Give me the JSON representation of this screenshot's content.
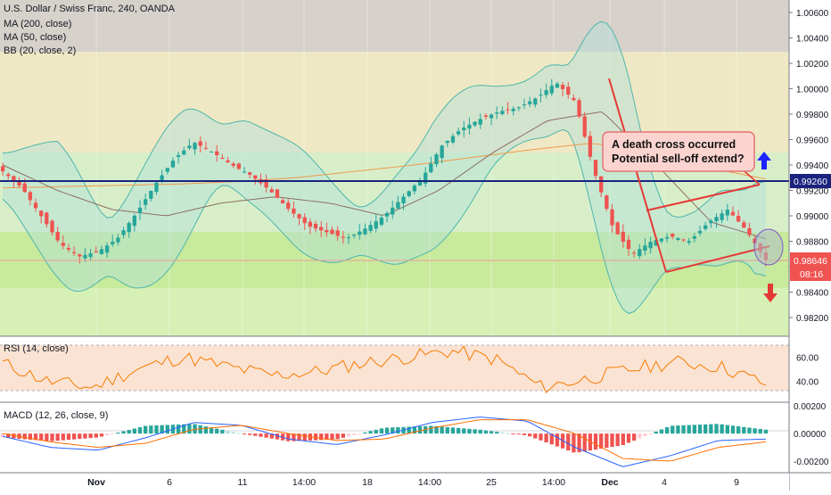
{
  "header": {
    "symbol": "U.S. Dollar / Swiss Franc, 240, OANDA",
    "indicators": [
      "MA (200, close)",
      "MA (50, close)",
      "BB (20, close, 2)"
    ]
  },
  "annotation": {
    "line1": "A death cross occurred",
    "line2": "Potential sell-off extend?"
  },
  "price_labels": {
    "resistance": "0.99260",
    "current": "0.98646",
    "countdown": "08:16"
  },
  "rsi_panel": {
    "label": "RSI (14, close)"
  },
  "macd_panel": {
    "label": "MACD (12, 26, close, 9)"
  },
  "colors": {
    "up": "#26a69a",
    "down": "#ef5350",
    "ma200": "#f2994a",
    "ma50": "#8d6e63",
    "bb_fill": "#b2dfdb",
    "resistance": "#1a237e",
    "trend": "#e53935",
    "rsi": "#f57c00",
    "macd": "#2962ff",
    "signal": "#ff6d00"
  },
  "chart_data": [
    {
      "type": "line",
      "title": "U.S. Dollar / Swiss Franc, 240, OANDA",
      "x_ticks": [
        "Nov",
        "6",
        "11",
        "14:00",
        "18",
        "14:00",
        "25",
        "14:00",
        "Dec",
        "4",
        "9"
      ],
      "y_ticks": [
        "0.98200",
        "0.98400",
        "0.98600",
        "0.98800",
        "0.99000",
        "0.99200",
        "0.99400",
        "0.99600",
        "0.99800",
        "1.00000",
        "1.00200",
        "1.00400",
        "1.00600"
      ],
      "ylim": [
        0.9808,
        1.0068
      ],
      "approx_close_path": [
        0.9935,
        0.9922,
        0.99,
        0.9878,
        0.9868,
        0.9872,
        0.9882,
        0.9902,
        0.9925,
        0.9945,
        0.9958,
        0.995,
        0.994,
        0.9932,
        0.992,
        0.9905,
        0.9892,
        0.9887,
        0.9882,
        0.989,
        0.99,
        0.9915,
        0.993,
        0.9955,
        0.9968,
        0.9976,
        0.9982,
        0.9985,
        0.9993,
        1.0005,
        0.999,
        0.9935,
        0.989,
        0.987,
        0.988,
        0.9884,
        0.988,
        0.9895,
        0.9905,
        0.9888,
        0.9865
      ],
      "resistance": 0.9926,
      "last_price": 0.98646,
      "series": [
        {
          "name": "MA (200, close)",
          "values": [
            0.9922,
            0.9923,
            0.9924,
            0.9925,
            0.9927,
            0.993,
            0.9935,
            0.994,
            0.9946,
            0.9952,
            0.9957,
            0.9953,
            0.9938,
            0.9929
          ]
        },
        {
          "name": "MA (50, close)",
          "values": [
            0.994,
            0.992,
            0.9905,
            0.99,
            0.991,
            0.9915,
            0.991,
            0.99,
            0.992,
            0.995,
            0.9975,
            0.9982,
            0.994,
            0.9895,
            0.9882
          ]
        }
      ]
    },
    {
      "type": "line",
      "title": "RSI (14, close)",
      "y_ticks": [
        "40.00",
        "60.00"
      ],
      "ylim": [
        25,
        75
      ],
      "series": [
        {
          "name": "RSI (14, close)",
          "values": [
            55,
            40,
            35,
            50,
            60,
            52,
            45,
            48,
            55,
            60,
            65,
            58,
            35,
            42,
            50,
            56,
            52,
            38
          ]
        }
      ]
    },
    {
      "type": "bar",
      "title": "MACD (12, 26, close, 9)",
      "y_ticks": [
        "0.00200",
        "0.00000",
        "-0.00200"
      ],
      "ylim": [
        -0.0027,
        0.0022
      ],
      "series": [
        {
          "name": "MACD",
          "values": [
            -0.0002,
            -0.001,
            -0.0012,
            -0.0003,
            0.0008,
            0.0006,
            -0.0004,
            -0.0008,
            -0.0001,
            0.0008,
            0.0012,
            0.0009,
            -0.001,
            -0.0024,
            -0.0016,
            -0.0005,
            -0.0004
          ]
        },
        {
          "name": "Signal",
          "values": [
            0.0,
            -0.0006,
            -0.001,
            -0.0007,
            0.0003,
            0.0006,
            0.0,
            -0.0005,
            -0.0004,
            0.0004,
            0.001,
            0.001,
            0.0,
            -0.0018,
            -0.002,
            -0.001,
            -0.0006
          ]
        }
      ]
    }
  ]
}
